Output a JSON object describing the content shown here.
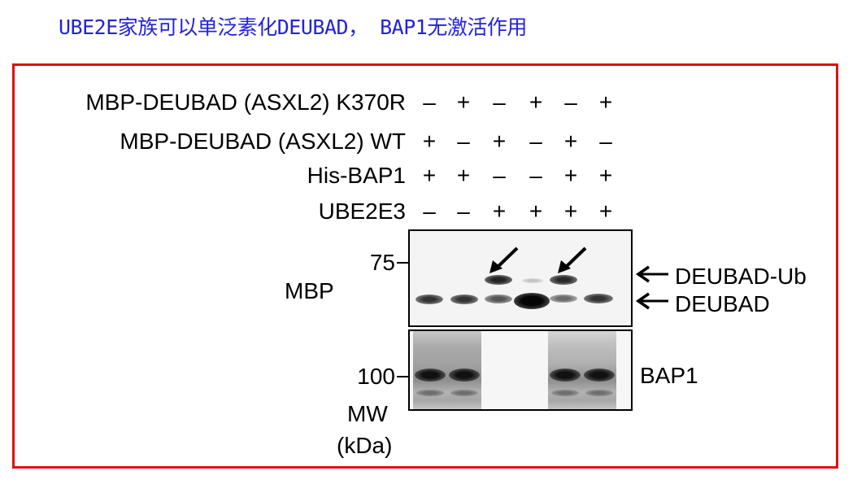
{
  "title": "UBE2E家族可以单泛素化DEUBAD， BAP1无激活作用",
  "conditions": [
    {
      "label": "MBP-DEUBAD (ASXL2) K370R",
      "signs": [
        "–",
        "+",
        "–",
        "+",
        "–",
        "+"
      ]
    },
    {
      "label": "MBP-DEUBAD (ASXL2) WT",
      "signs": [
        "+",
        "–",
        "+",
        "–",
        "+",
        "–"
      ]
    },
    {
      "label": "His-BAP1",
      "signs": [
        "+",
        "+",
        "–",
        "–",
        "+",
        "+"
      ]
    },
    {
      "label": "UBE2E3",
      "signs": [
        "–",
        "–",
        "+",
        "+",
        "+",
        "+"
      ]
    }
  ],
  "blots": {
    "mbp": {
      "label": "MBP",
      "marker": "75",
      "band_labels": [
        "DEUBAD-Ub",
        "DEUBAD"
      ]
    },
    "bap1": {
      "label": "BAP1",
      "marker": "100"
    }
  },
  "mw_label": [
    "MW",
    "(kDa)"
  ],
  "colors": {
    "title": "#2323d8",
    "frame": "#e01010"
  }
}
